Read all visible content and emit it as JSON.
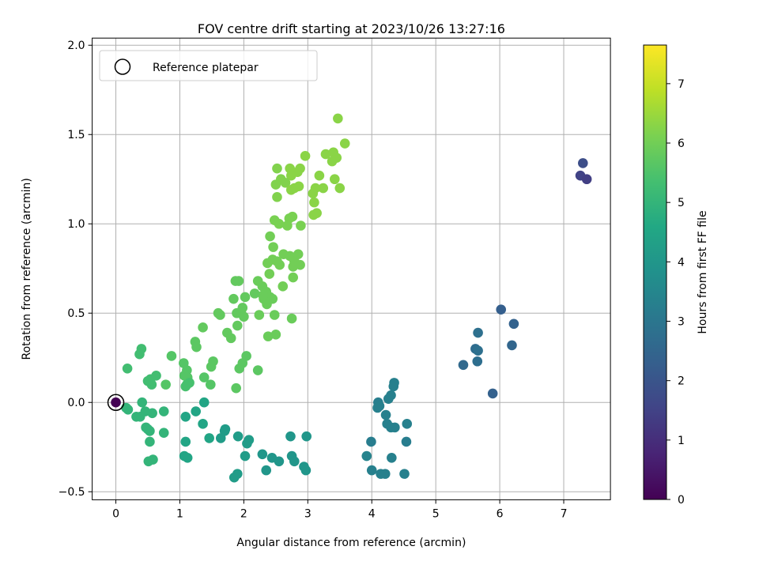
{
  "chart_data": {
    "type": "scatter",
    "title": "FOV centre drift starting at 2023/10/26 13:27:16",
    "xlabel": "Angular distance from reference (arcmin)",
    "ylabel": "Rotation from reference (arcmin)",
    "xlim": [
      -0.37,
      7.73
    ],
    "ylim": [
      -0.545,
      2.04
    ],
    "xticks": [
      0,
      1,
      2,
      3,
      4,
      5,
      6,
      7
    ],
    "xtick_labels": [
      "0",
      "1",
      "2",
      "3",
      "4",
      "5",
      "6",
      "7"
    ],
    "yticks": [
      -0.5,
      0.0,
      0.5,
      1.0,
      1.5,
      2.0
    ],
    "ytick_labels": [
      "−0.5",
      "0.0",
      "0.5",
      "1.0",
      "1.5",
      "2.0"
    ],
    "grid": true,
    "legend": {
      "placement": "top-left",
      "label": "Reference platepar"
    },
    "colorbar": {
      "label": "Hours from first FF file",
      "colormap": "viridis",
      "range": [
        0,
        7.65
      ],
      "ticks": [
        0,
        1,
        2,
        3,
        4,
        5,
        6,
        7
      ],
      "tick_labels": [
        "0",
        "1",
        "2",
        "3",
        "4",
        "5",
        "6",
        "7"
      ]
    },
    "reference_point": {
      "x": 0,
      "y": 0
    },
    "points": [
      [
        0.0,
        0.0,
        0.0
      ],
      [
        7.3,
        1.34,
        1.8
      ],
      [
        7.26,
        1.27,
        1.5
      ],
      [
        7.36,
        1.25,
        1.4
      ],
      [
        6.02,
        0.52,
        2.3
      ],
      [
        6.22,
        0.44,
        2.4
      ],
      [
        6.19,
        0.32,
        2.5
      ],
      [
        5.89,
        0.05,
        2.35
      ],
      [
        5.66,
        0.39,
        2.8
      ],
      [
        5.62,
        0.3,
        2.7
      ],
      [
        5.66,
        0.29,
        2.8
      ],
      [
        5.65,
        0.23,
        2.75
      ],
      [
        5.43,
        0.21,
        2.6
      ],
      [
        4.35,
        0.11,
        3.3
      ],
      [
        4.34,
        0.09,
        3.3
      ],
      [
        4.3,
        0.04,
        3.3
      ],
      [
        4.26,
        0.02,
        3.3
      ],
      [
        4.1,
        0.0,
        3.25
      ],
      [
        4.12,
        -0.02,
        3.3
      ],
      [
        4.09,
        -0.03,
        3.3
      ],
      [
        4.22,
        -0.07,
        3.3
      ],
      [
        4.24,
        -0.12,
        3.3
      ],
      [
        4.3,
        -0.14,
        3.3
      ],
      [
        4.36,
        -0.14,
        3.3
      ],
      [
        4.55,
        -0.12,
        3.3
      ],
      [
        3.99,
        -0.22,
        3.2
      ],
      [
        4.54,
        -0.22,
        3.2
      ],
      [
        3.92,
        -0.3,
        3.4
      ],
      [
        4.31,
        -0.31,
        3.3
      ],
      [
        4.0,
        -0.38,
        3.3
      ],
      [
        4.14,
        -0.4,
        3.3
      ],
      [
        4.21,
        -0.4,
        3.3
      ],
      [
        4.51,
        -0.4,
        3.3
      ],
      [
        3.47,
        1.59,
        6.3
      ],
      [
        3.58,
        1.45,
        6.3
      ],
      [
        3.28,
        1.39,
        6.3
      ],
      [
        3.4,
        1.4,
        6.3
      ],
      [
        3.45,
        1.37,
        6.3
      ],
      [
        3.38,
        1.35,
        6.3
      ],
      [
        3.5,
        1.2,
        6.3
      ],
      [
        3.42,
        1.25,
        6.3
      ],
      [
        3.18,
        1.27,
        6.3
      ],
      [
        3.24,
        1.2,
        6.3
      ],
      [
        3.12,
        1.2,
        6.3
      ],
      [
        3.08,
        1.17,
        6.3
      ],
      [
        3.1,
        1.12,
        6.3
      ],
      [
        3.14,
        1.06,
        6.3
      ],
      [
        3.09,
        1.05,
        6.3
      ],
      [
        2.96,
        1.38,
        6.3
      ],
      [
        2.88,
        1.31,
        6.3
      ],
      [
        2.72,
        1.31,
        6.3
      ],
      [
        2.84,
        1.29,
        6.3
      ],
      [
        2.74,
        1.27,
        6.3
      ],
      [
        2.52,
        1.31,
        6.2
      ],
      [
        2.58,
        1.25,
        6.2
      ],
      [
        2.5,
        1.22,
        6.2
      ],
      [
        2.65,
        1.23,
        6.2
      ],
      [
        2.79,
        1.2,
        6.3
      ],
      [
        2.74,
        1.19,
        6.3
      ],
      [
        2.86,
        1.21,
        6.3
      ],
      [
        2.52,
        1.15,
        6.2
      ],
      [
        2.48,
        1.02,
        6.1
      ],
      [
        2.55,
        1.0,
        6.1
      ],
      [
        2.71,
        1.03,
        6.1
      ],
      [
        2.76,
        1.04,
        6.1
      ],
      [
        2.68,
        0.99,
        6.1
      ],
      [
        2.89,
        0.99,
        6.1
      ],
      [
        2.41,
        0.93,
        6.0
      ],
      [
        2.46,
        0.87,
        6.0
      ],
      [
        2.62,
        0.83,
        6.0
      ],
      [
        2.72,
        0.82,
        6.0
      ],
      [
        2.79,
        0.79,
        6.0
      ],
      [
        2.85,
        0.83,
        6.0
      ],
      [
        2.37,
        0.78,
        6.0
      ],
      [
        2.45,
        0.8,
        6.0
      ],
      [
        2.52,
        0.79,
        6.0
      ],
      [
        2.56,
        0.77,
        6.0
      ],
      [
        2.77,
        0.76,
        6.0
      ],
      [
        2.88,
        0.77,
        6.0
      ],
      [
        2.4,
        0.72,
        6.0
      ],
      [
        2.77,
        0.7,
        6.0
      ],
      [
        2.61,
        0.65,
        6.0
      ],
      [
        2.22,
        0.68,
        5.9
      ],
      [
        2.35,
        0.62,
        5.9
      ],
      [
        2.31,
        0.58,
        5.9
      ],
      [
        2.41,
        0.59,
        5.9
      ],
      [
        2.45,
        0.58,
        5.9
      ],
      [
        2.36,
        0.55,
        5.9
      ],
      [
        2.48,
        0.49,
        5.9
      ],
      [
        2.24,
        0.49,
        5.9
      ],
      [
        2.38,
        0.37,
        5.9
      ],
      [
        2.5,
        0.38,
        5.9
      ],
      [
        2.75,
        0.47,
        5.9
      ],
      [
        2.29,
        0.65,
        5.9
      ],
      [
        2.3,
        0.6,
        5.9
      ],
      [
        1.87,
        0.68,
        5.8
      ],
      [
        1.92,
        0.68,
        5.8
      ],
      [
        2.02,
        0.59,
        5.8
      ],
      [
        2.17,
        0.61,
        5.8
      ],
      [
        1.84,
        0.58,
        5.8
      ],
      [
        1.89,
        0.5,
        5.8
      ],
      [
        1.96,
        0.5,
        5.8
      ],
      [
        1.98,
        0.53,
        5.8
      ],
      [
        2.0,
        0.48,
        5.8
      ],
      [
        1.6,
        0.5,
        5.8
      ],
      [
        1.63,
        0.49,
        5.8
      ],
      [
        1.9,
        0.43,
        5.8
      ],
      [
        1.74,
        0.39,
        5.8
      ],
      [
        1.8,
        0.36,
        5.8
      ],
      [
        1.36,
        0.42,
        5.8
      ],
      [
        1.24,
        0.34,
        5.7
      ],
      [
        1.26,
        0.31,
        5.7
      ],
      [
        1.52,
        0.23,
        5.7
      ],
      [
        1.49,
        0.2,
        5.7
      ],
      [
        2.04,
        0.26,
        5.7
      ],
      [
        1.98,
        0.22,
        5.7
      ],
      [
        1.93,
        0.19,
        5.7
      ],
      [
        2.22,
        0.18,
        5.7
      ],
      [
        1.88,
        0.08,
        5.7
      ],
      [
        0.87,
        0.26,
        5.6
      ],
      [
        1.06,
        0.22,
        5.6
      ],
      [
        1.11,
        0.18,
        5.6
      ],
      [
        1.07,
        0.15,
        5.6
      ],
      [
        1.12,
        0.14,
        5.6
      ],
      [
        1.38,
        0.14,
        5.6
      ],
      [
        1.48,
        0.1,
        5.6
      ],
      [
        0.78,
        0.1,
        5.6
      ],
      [
        1.09,
        0.09,
        5.4
      ],
      [
        1.15,
        0.11,
        5.4
      ],
      [
        1.11,
        0.1,
        5.4
      ],
      [
        0.4,
        0.3,
        5.3
      ],
      [
        0.37,
        0.27,
        5.3
      ],
      [
        0.18,
        0.19,
        5.3
      ],
      [
        0.63,
        0.15,
        5.3
      ],
      [
        0.54,
        0.13,
        5.3
      ],
      [
        0.56,
        0.1,
        5.3
      ],
      [
        0.5,
        0.12,
        5.3
      ],
      [
        0.16,
        -0.03,
        5.0
      ],
      [
        0.19,
        -0.04,
        5.0
      ],
      [
        0.41,
        0.0,
        5.0
      ],
      [
        0.46,
        -0.05,
        5.0
      ],
      [
        0.32,
        -0.08,
        5.0
      ],
      [
        0.38,
        -0.08,
        5.0
      ],
      [
        0.57,
        -0.06,
        5.0
      ],
      [
        0.75,
        -0.05,
        5.0
      ],
      [
        0.47,
        -0.14,
        5.0
      ],
      [
        0.5,
        -0.15,
        5.0
      ],
      [
        0.53,
        -0.16,
        5.0
      ],
      [
        0.75,
        -0.17,
        5.0
      ],
      [
        0.53,
        -0.22,
        5.0
      ],
      [
        0.58,
        -0.32,
        5.0
      ],
      [
        0.51,
        -0.33,
        5.0
      ],
      [
        1.38,
        0.0,
        4.5
      ],
      [
        1.25,
        -0.05,
        4.5
      ],
      [
        1.09,
        -0.08,
        4.5
      ],
      [
        1.36,
        -0.12,
        4.5
      ],
      [
        1.09,
        -0.22,
        4.5
      ],
      [
        1.46,
        -0.2,
        4.5
      ],
      [
        1.07,
        -0.3,
        4.5
      ],
      [
        1.12,
        -0.31,
        4.5
      ],
      [
        1.71,
        -0.15,
        4.2
      ],
      [
        1.7,
        -0.16,
        4.2
      ],
      [
        1.64,
        -0.2,
        4.2
      ],
      [
        1.91,
        -0.19,
        4.2
      ],
      [
        2.08,
        -0.21,
        4.2
      ],
      [
        2.05,
        -0.23,
        4.2
      ],
      [
        2.02,
        -0.3,
        4.2
      ],
      [
        1.9,
        -0.4,
        4.2
      ],
      [
        1.85,
        -0.42,
        4.2
      ],
      [
        2.29,
        -0.29,
        4.0
      ],
      [
        2.44,
        -0.31,
        4.0
      ],
      [
        2.55,
        -0.33,
        4.0
      ],
      [
        2.35,
        -0.38,
        4.0
      ],
      [
        2.73,
        -0.19,
        4.0
      ],
      [
        2.98,
        -0.19,
        4.0
      ],
      [
        2.75,
        -0.3,
        4.0
      ],
      [
        2.79,
        -0.33,
        4.0
      ],
      [
        2.94,
        -0.36,
        4.0
      ],
      [
        2.97,
        -0.38,
        4.0
      ]
    ]
  }
}
